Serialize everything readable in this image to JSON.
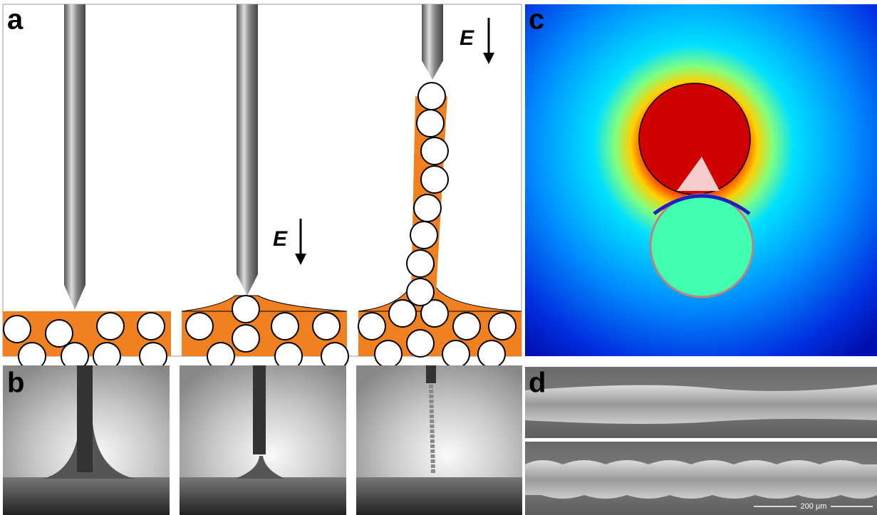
{
  "panels": {
    "a": {
      "label": "a",
      "field_labels": [
        "E",
        "E"
      ]
    },
    "b": {
      "label": "b"
    },
    "c": {
      "label": "c"
    },
    "d": {
      "label": "d",
      "scale_bar": "200 µm"
    }
  }
}
